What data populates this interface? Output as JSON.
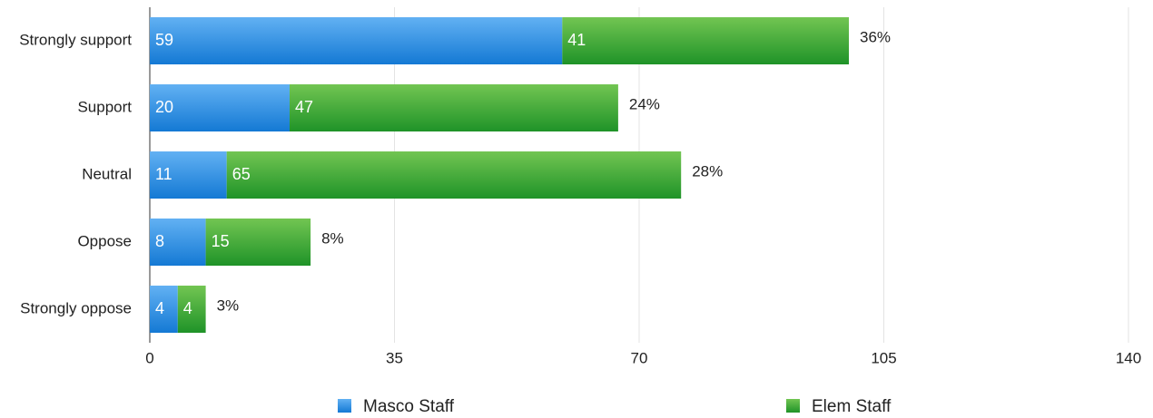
{
  "chart_data": {
    "type": "stacked-hbar",
    "categories": [
      "Strongly support",
      "Support",
      "Neutral",
      "Oppose",
      "Strongly oppose"
    ],
    "series": [
      {
        "name": "Masco Staff",
        "color": "#2f8fe3",
        "values": [
          59,
          20,
          11,
          8,
          4
        ]
      },
      {
        "name": "Elem Staff",
        "color": "#3aa83a",
        "values": [
          41,
          47,
          65,
          15,
          4
        ]
      }
    ],
    "annotations": [
      "36%",
      "24%",
      "28%",
      "8%",
      "3%"
    ],
    "xlim": [
      0,
      140
    ],
    "xticks": [
      0,
      35,
      70,
      105,
      140
    ],
    "grid": true,
    "legend": "bottom"
  }
}
